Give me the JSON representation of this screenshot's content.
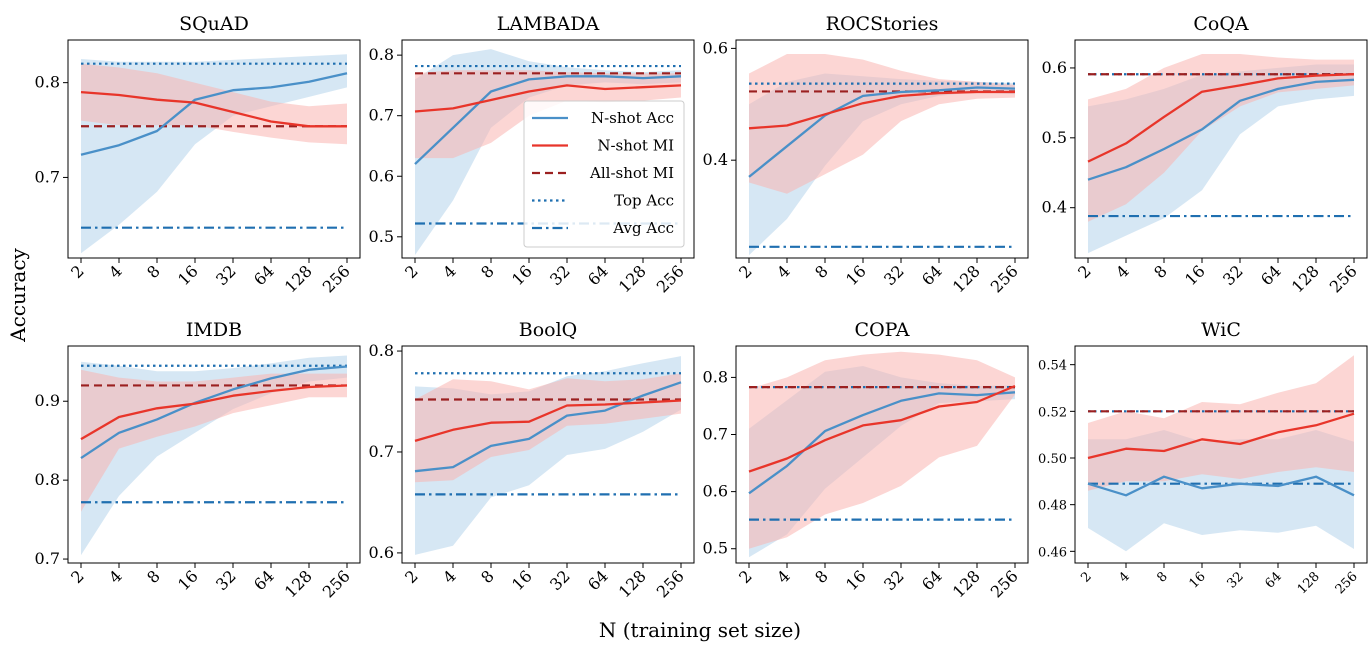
{
  "figure": {
    "xlabel": "N (training set size)",
    "ylabel": "Accuracy"
  },
  "legend": {
    "placement": "inside LAMBADA panel, lower-right",
    "entries": [
      {
        "label": "N-shot Acc",
        "key": "nacc"
      },
      {
        "label": "N-shot MI",
        "key": "nmi"
      },
      {
        "label": "All-shot MI",
        "key": "allmi"
      },
      {
        "label": "Top Acc",
        "key": "top"
      },
      {
        "label": "Avg Acc",
        "key": "avg"
      }
    ]
  },
  "colors": {
    "nacc": "#4a90c8",
    "nacc_band": "#aed0ea",
    "nmi": "#e8352a",
    "nmi_band": "#f9b4b0",
    "allmi": "#9b2020",
    "top": "#1f6fb0",
    "avg": "#1f6fb0"
  },
  "chart_data": [
    {
      "type": "line",
      "title": "SQuAD",
      "x": [
        2,
        4,
        8,
        16,
        32,
        64,
        128,
        256
      ],
      "ylim": [
        0.615,
        0.845
      ],
      "yticks": [
        0.7,
        0.8
      ],
      "ytick_labels": [
        "0.7",
        "0.8"
      ],
      "series": [
        {
          "name": "N-shot Acc",
          "values": [
            0.724,
            0.734,
            0.749,
            0.782,
            0.792,
            0.795,
            0.801,
            0.81
          ],
          "lower": [
            0.62,
            0.65,
            0.685,
            0.735,
            0.765,
            0.775,
            0.785,
            0.795
          ],
          "upper": [
            0.825,
            0.822,
            0.822,
            0.822,
            0.824,
            0.826,
            0.828,
            0.83
          ]
        },
        {
          "name": "N-shot MI",
          "values": [
            0.79,
            0.787,
            0.782,
            0.779,
            0.769,
            0.759,
            0.754,
            0.754
          ],
          "lower": [
            0.76,
            0.755,
            0.755,
            0.755,
            0.748,
            0.742,
            0.737,
            0.735
          ],
          "upper": [
            0.82,
            0.816,
            0.81,
            0.8,
            0.79,
            0.78,
            0.775,
            0.778
          ]
        }
      ],
      "all_shot_mi": 0.754,
      "top_acc": 0.82,
      "avg_acc": 0.647
    },
    {
      "type": "line",
      "title": "LAMBADA",
      "x": [
        2,
        4,
        8,
        16,
        32,
        64,
        128,
        256
      ],
      "ylim": [
        0.465,
        0.825
      ],
      "yticks": [
        0.5,
        0.6,
        0.7,
        0.8
      ],
      "ytick_labels": [
        "0.5",
        "0.6",
        "0.7",
        "0.8"
      ],
      "series": [
        {
          "name": "N-shot Acc",
          "values": [
            0.62,
            0.68,
            0.74,
            0.76,
            0.765,
            0.765,
            0.762,
            0.765
          ],
          "lower": [
            0.47,
            0.56,
            0.68,
            0.73,
            0.75,
            0.755,
            0.752,
            0.755
          ],
          "upper": [
            0.76,
            0.8,
            0.81,
            0.79,
            0.78,
            0.775,
            0.772,
            0.775
          ]
        },
        {
          "name": "N-shot MI",
          "values": [
            0.707,
            0.712,
            0.726,
            0.74,
            0.75,
            0.744,
            0.747,
            0.75
          ],
          "lower": [
            0.63,
            0.63,
            0.655,
            0.7,
            0.725,
            0.722,
            0.725,
            0.73
          ],
          "upper": [
            0.77,
            0.775,
            0.775,
            0.775,
            0.772,
            0.77,
            0.77,
            0.77
          ]
        }
      ],
      "all_shot_mi": 0.77,
      "top_acc": 0.782,
      "avg_acc": 0.522
    },
    {
      "type": "line",
      "title": "ROCStories",
      "x": [
        2,
        4,
        8,
        16,
        32,
        64,
        128,
        256
      ],
      "ylim": [
        0.225,
        0.615
      ],
      "yticks": [
        0.4,
        0.6
      ],
      "ytick_labels": [
        "0.4",
        "0.6"
      ],
      "series": [
        {
          "name": "N-shot Acc",
          "values": [
            0.37,
            0.425,
            0.48,
            0.515,
            0.522,
            0.525,
            0.53,
            0.528
          ],
          "lower": [
            0.23,
            0.295,
            0.39,
            0.47,
            0.5,
            0.515,
            0.522,
            0.518
          ],
          "upper": [
            0.5,
            0.54,
            0.555,
            0.55,
            0.545,
            0.542,
            0.54,
            0.538
          ]
        },
        {
          "name": "N-shot MI",
          "values": [
            0.457,
            0.462,
            0.482,
            0.502,
            0.515,
            0.52,
            0.522,
            0.522
          ],
          "lower": [
            0.36,
            0.34,
            0.375,
            0.41,
            0.47,
            0.5,
            0.51,
            0.512
          ],
          "upper": [
            0.555,
            0.59,
            0.59,
            0.58,
            0.56,
            0.545,
            0.54,
            0.535
          ]
        }
      ],
      "all_shot_mi": 0.523,
      "top_acc": 0.537,
      "avg_acc": 0.245
    },
    {
      "type": "line",
      "title": "CoQA",
      "x": [
        2,
        4,
        8,
        16,
        32,
        64,
        128,
        256
      ],
      "ylim": [
        0.328,
        0.64
      ],
      "yticks": [
        0.4,
        0.5,
        0.6
      ],
      "ytick_labels": [
        "0.4",
        "0.5",
        "0.6"
      ],
      "series": [
        {
          "name": "N-shot Acc",
          "values": [
            0.44,
            0.458,
            0.484,
            0.512,
            0.553,
            0.57,
            0.58,
            0.583
          ],
          "lower": [
            0.335,
            0.36,
            0.385,
            0.425,
            0.505,
            0.545,
            0.555,
            0.56
          ],
          "upper": [
            0.545,
            0.555,
            0.57,
            0.59,
            0.595,
            0.6,
            0.605,
            0.605
          ]
        },
        {
          "name": "N-shot MI",
          "values": [
            0.466,
            0.492,
            0.53,
            0.566,
            0.575,
            0.585,
            0.589,
            0.591
          ],
          "lower": [
            0.38,
            0.405,
            0.45,
            0.51,
            0.545,
            0.565,
            0.57,
            0.575
          ],
          "upper": [
            0.555,
            0.57,
            0.6,
            0.62,
            0.62,
            0.615,
            0.612,
            0.612
          ]
        }
      ],
      "all_shot_mi": 0.591,
      "top_acc": 0.591,
      "avg_acc": 0.388
    },
    {
      "type": "line",
      "title": "IMDB",
      "x": [
        2,
        4,
        8,
        16,
        32,
        64,
        128,
        256
      ],
      "ylim": [
        0.695,
        0.97
      ],
      "yticks": [
        0.7,
        0.8,
        0.9
      ],
      "ytick_labels": [
        "0.7",
        "0.8",
        "0.9"
      ],
      "series": [
        {
          "name": "N-shot Acc",
          "values": [
            0.828,
            0.86,
            0.877,
            0.898,
            0.915,
            0.929,
            0.94,
            0.944
          ],
          "lower": [
            0.705,
            0.78,
            0.83,
            0.86,
            0.89,
            0.91,
            0.925,
            0.93
          ],
          "upper": [
            0.95,
            0.945,
            0.938,
            0.938,
            0.942,
            0.948,
            0.955,
            0.958
          ]
        },
        {
          "name": "N-shot MI",
          "values": [
            0.852,
            0.88,
            0.891,
            0.897,
            0.907,
            0.913,
            0.918,
            0.92
          ],
          "lower": [
            0.76,
            0.84,
            0.855,
            0.868,
            0.885,
            0.895,
            0.905,
            0.905
          ],
          "upper": [
            0.94,
            0.93,
            0.925,
            0.925,
            0.93,
            0.935,
            0.935,
            0.935
          ]
        }
      ],
      "all_shot_mi": 0.92,
      "top_acc": 0.945,
      "avg_acc": 0.772
    },
    {
      "type": "line",
      "title": "BoolQ",
      "x": [
        2,
        4,
        8,
        16,
        32,
        64,
        128,
        256
      ],
      "ylim": [
        0.59,
        0.805
      ],
      "yticks": [
        0.6,
        0.7,
        0.8
      ],
      "ytick_labels": [
        "0.6",
        "0.7",
        "0.8"
      ],
      "series": [
        {
          "name": "N-shot Acc",
          "values": [
            0.681,
            0.685,
            0.706,
            0.713,
            0.736,
            0.741,
            0.756,
            0.769
          ],
          "lower": [
            0.598,
            0.607,
            0.655,
            0.667,
            0.697,
            0.703,
            0.72,
            0.742
          ],
          "upper": [
            0.765,
            0.763,
            0.757,
            0.76,
            0.775,
            0.78,
            0.788,
            0.795
          ]
        },
        {
          "name": "N-shot MI",
          "values": [
            0.711,
            0.722,
            0.729,
            0.73,
            0.746,
            0.747,
            0.749,
            0.751
          ],
          "lower": [
            0.67,
            0.672,
            0.695,
            0.702,
            0.726,
            0.728,
            0.733,
            0.738
          ],
          "upper": [
            0.752,
            0.772,
            0.77,
            0.762,
            0.773,
            0.77,
            0.772,
            0.778
          ]
        }
      ],
      "all_shot_mi": 0.752,
      "top_acc": 0.778,
      "avg_acc": 0.658
    },
    {
      "type": "line",
      "title": "COPA",
      "x": [
        2,
        4,
        8,
        16,
        32,
        64,
        128,
        256
      ],
      "ylim": [
        0.475,
        0.855
      ],
      "yticks": [
        0.5,
        0.6,
        0.7,
        0.8
      ],
      "ytick_labels": [
        "0.5",
        "0.6",
        "0.7",
        "0.8"
      ],
      "series": [
        {
          "name": "N-shot Acc",
          "values": [
            0.597,
            0.645,
            0.706,
            0.734,
            0.759,
            0.772,
            0.769,
            0.774
          ],
          "lower": [
            0.485,
            0.525,
            0.605,
            0.66,
            0.715,
            0.755,
            0.758,
            0.762
          ],
          "upper": [
            0.71,
            0.76,
            0.81,
            0.82,
            0.8,
            0.79,
            0.785,
            0.786
          ]
        },
        {
          "name": "N-shot MI",
          "values": [
            0.635,
            0.658,
            0.69,
            0.716,
            0.725,
            0.749,
            0.757,
            0.785
          ],
          "lower": [
            0.5,
            0.52,
            0.56,
            0.58,
            0.61,
            0.66,
            0.68,
            0.77
          ],
          "upper": [
            0.78,
            0.8,
            0.83,
            0.84,
            0.845,
            0.84,
            0.83,
            0.8
          ]
        }
      ],
      "all_shot_mi": 0.783,
      "top_acc": 0.783,
      "avg_acc": 0.551
    },
    {
      "type": "line",
      "title": "WiC",
      "x": [
        2,
        4,
        8,
        16,
        32,
        64,
        128,
        256
      ],
      "ylim": [
        0.455,
        0.548
      ],
      "yticks": [
        0.46,
        0.48,
        0.5,
        0.52,
        0.54
      ],
      "ytick_labels": [
        "0.46",
        "0.48",
        "0.50",
        "0.52",
        "0.54"
      ],
      "series": [
        {
          "name": "N-shot Acc",
          "values": [
            0.489,
            0.484,
            0.492,
            0.487,
            0.489,
            0.488,
            0.492,
            0.484
          ],
          "lower": [
            0.47,
            0.46,
            0.472,
            0.467,
            0.469,
            0.468,
            0.471,
            0.461
          ],
          "upper": [
            0.508,
            0.508,
            0.512,
            0.507,
            0.508,
            0.508,
            0.512,
            0.507
          ]
        },
        {
          "name": "N-shot MI",
          "values": [
            0.5,
            0.504,
            0.503,
            0.508,
            0.506,
            0.511,
            0.514,
            0.519
          ],
          "lower": [
            0.486,
            0.49,
            0.49,
            0.493,
            0.491,
            0.494,
            0.496,
            0.494
          ],
          "upper": [
            0.515,
            0.52,
            0.517,
            0.524,
            0.523,
            0.528,
            0.532,
            0.544
          ]
        }
      ],
      "all_shot_mi": 0.52,
      "top_acc": 0.52,
      "avg_acc": 0.489
    }
  ]
}
